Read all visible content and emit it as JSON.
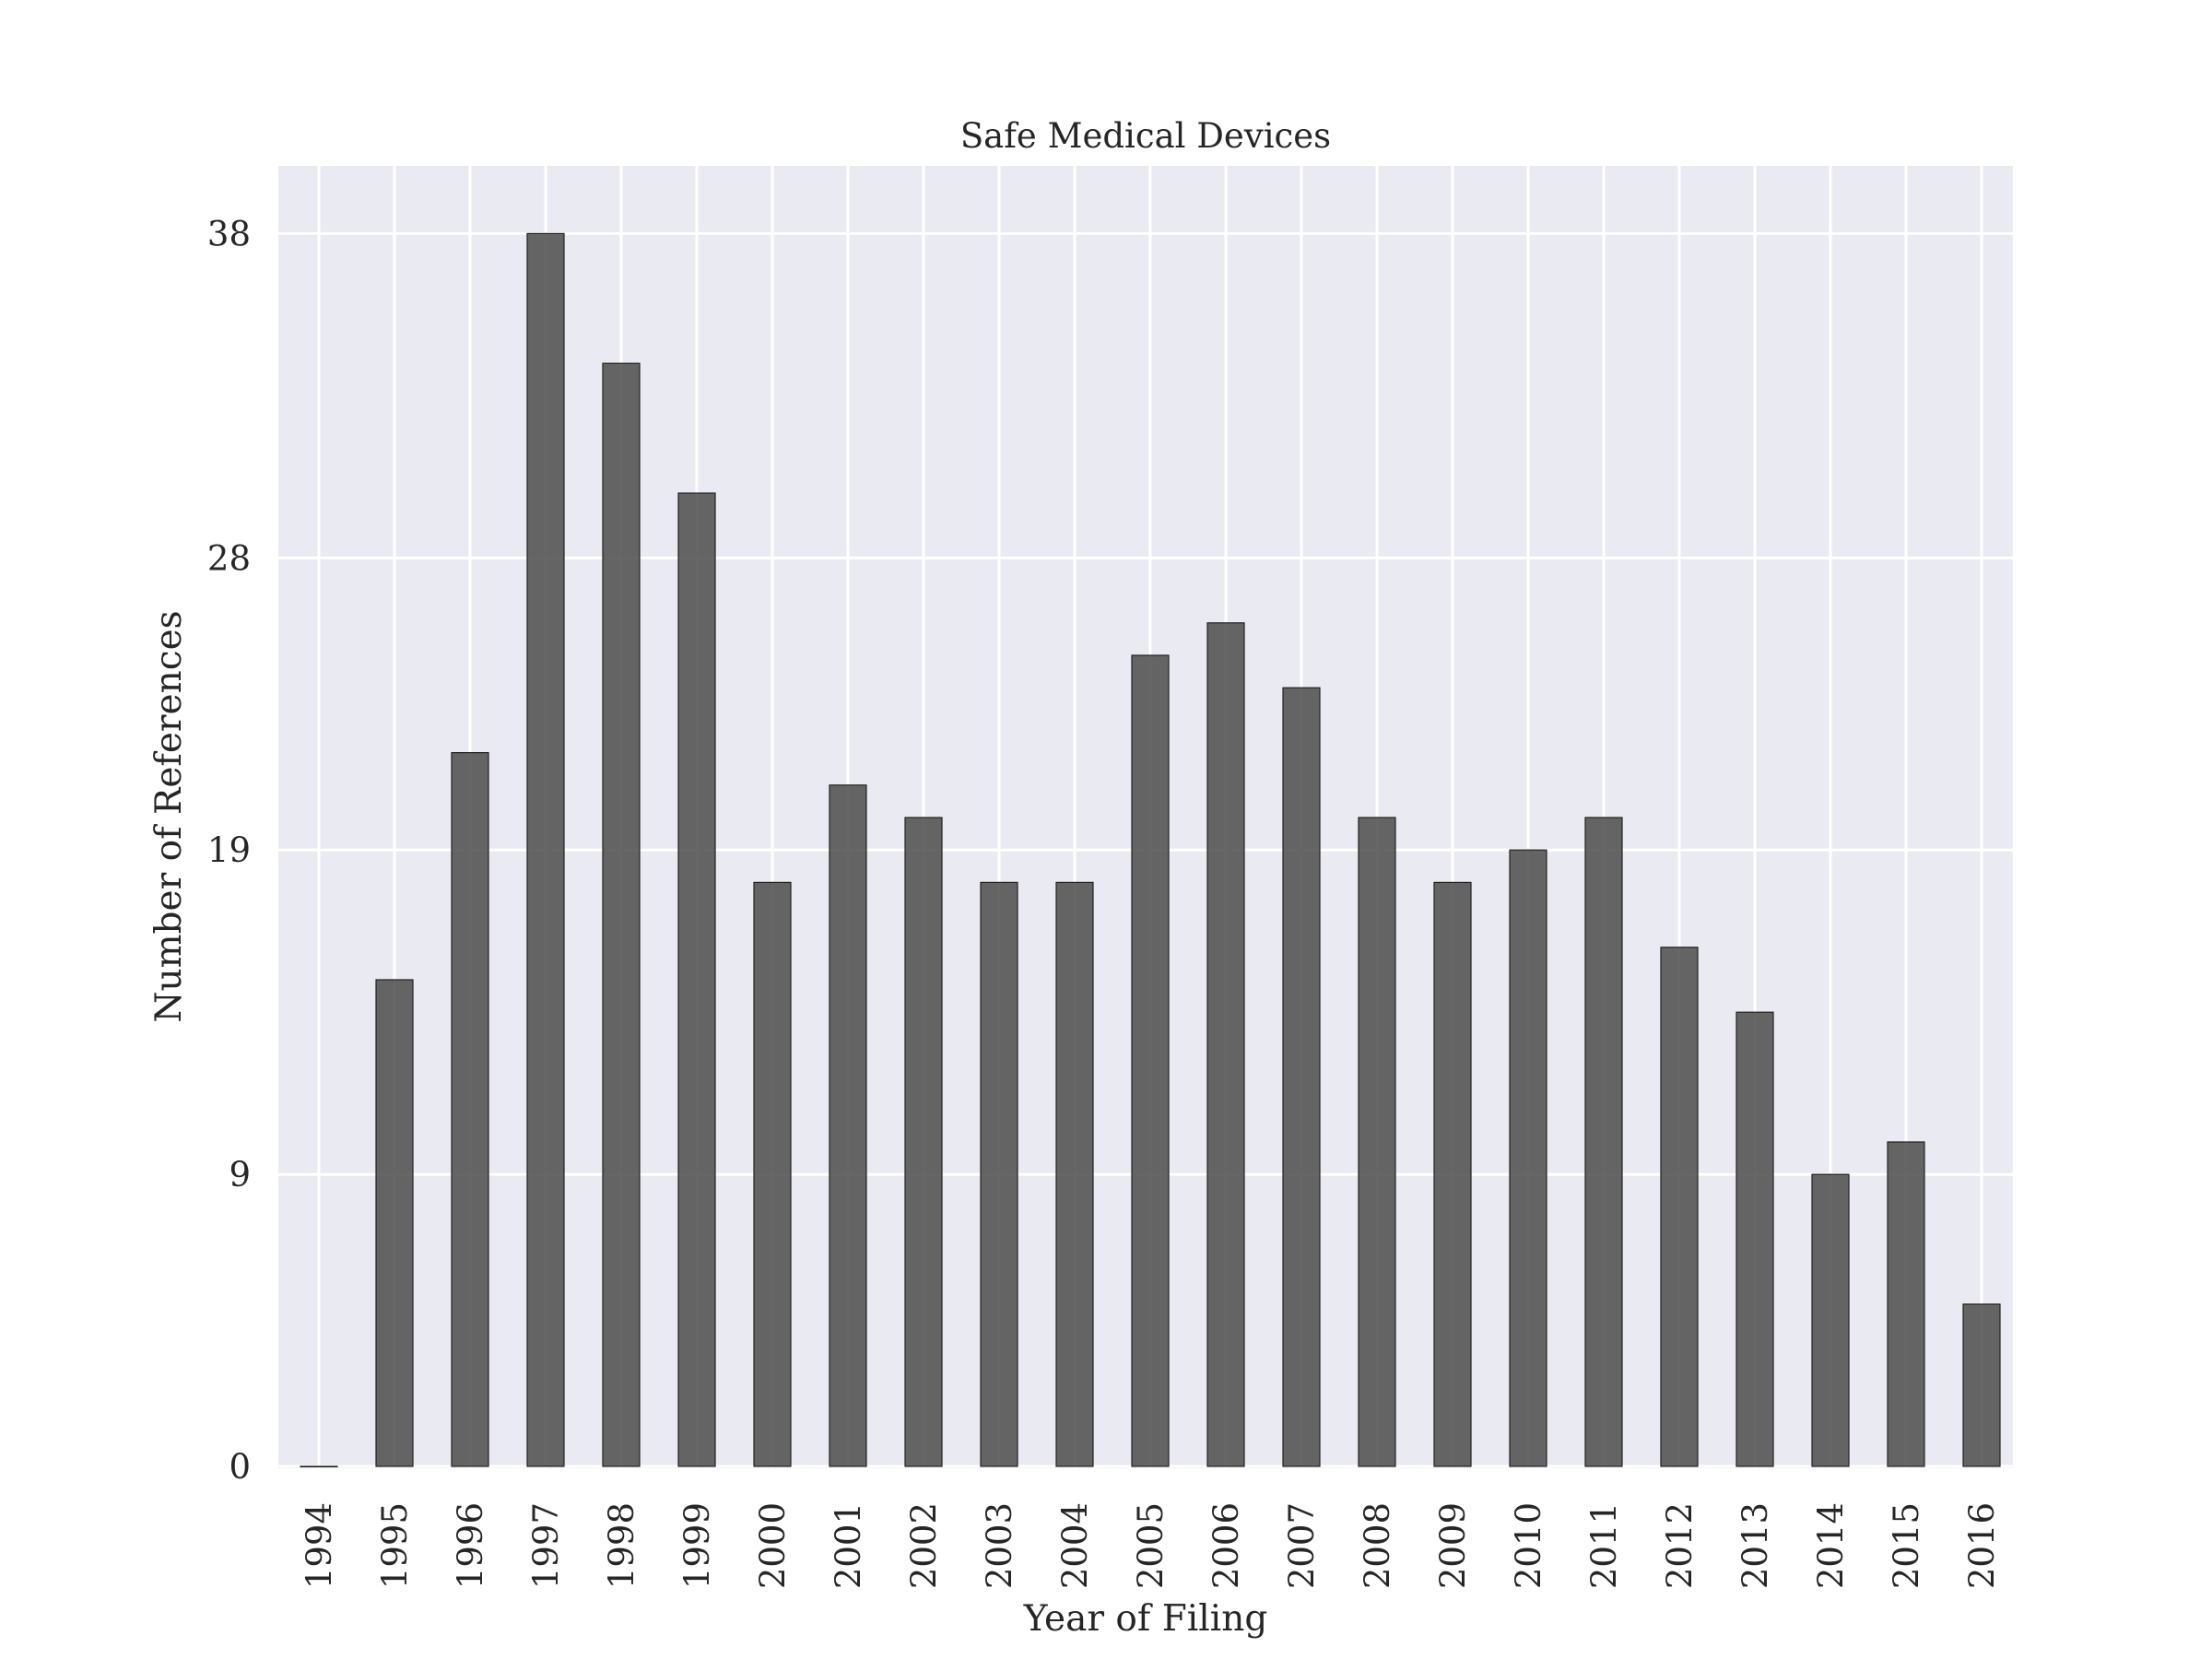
{
  "chart_data": {
    "type": "bar",
    "title": "Safe Medical Devices",
    "xlabel": "Year of Filing",
    "ylabel": "Number of References",
    "categories": [
      "1994",
      "1995",
      "1996",
      "1997",
      "1998",
      "1999",
      "2000",
      "2001",
      "2002",
      "2003",
      "2004",
      "2005",
      "2006",
      "2007",
      "2008",
      "2009",
      "2010",
      "2011",
      "2012",
      "2013",
      "2014",
      "2015",
      "2016"
    ],
    "values": [
      0,
      15,
      22,
      38,
      34,
      30,
      18,
      21,
      20,
      18,
      18,
      25,
      26,
      24,
      20,
      18,
      19,
      20,
      16,
      14,
      9,
      10,
      5
    ],
    "yticks": [
      0,
      9,
      19,
      28,
      38
    ],
    "ylim": [
      0,
      40
    ],
    "grid": true,
    "colors": {
      "plot_bg": "#eaeaf2",
      "grid": "#ffffff",
      "bar": "#555555",
      "bar_edge": "#222222",
      "text": "#262626"
    }
  }
}
